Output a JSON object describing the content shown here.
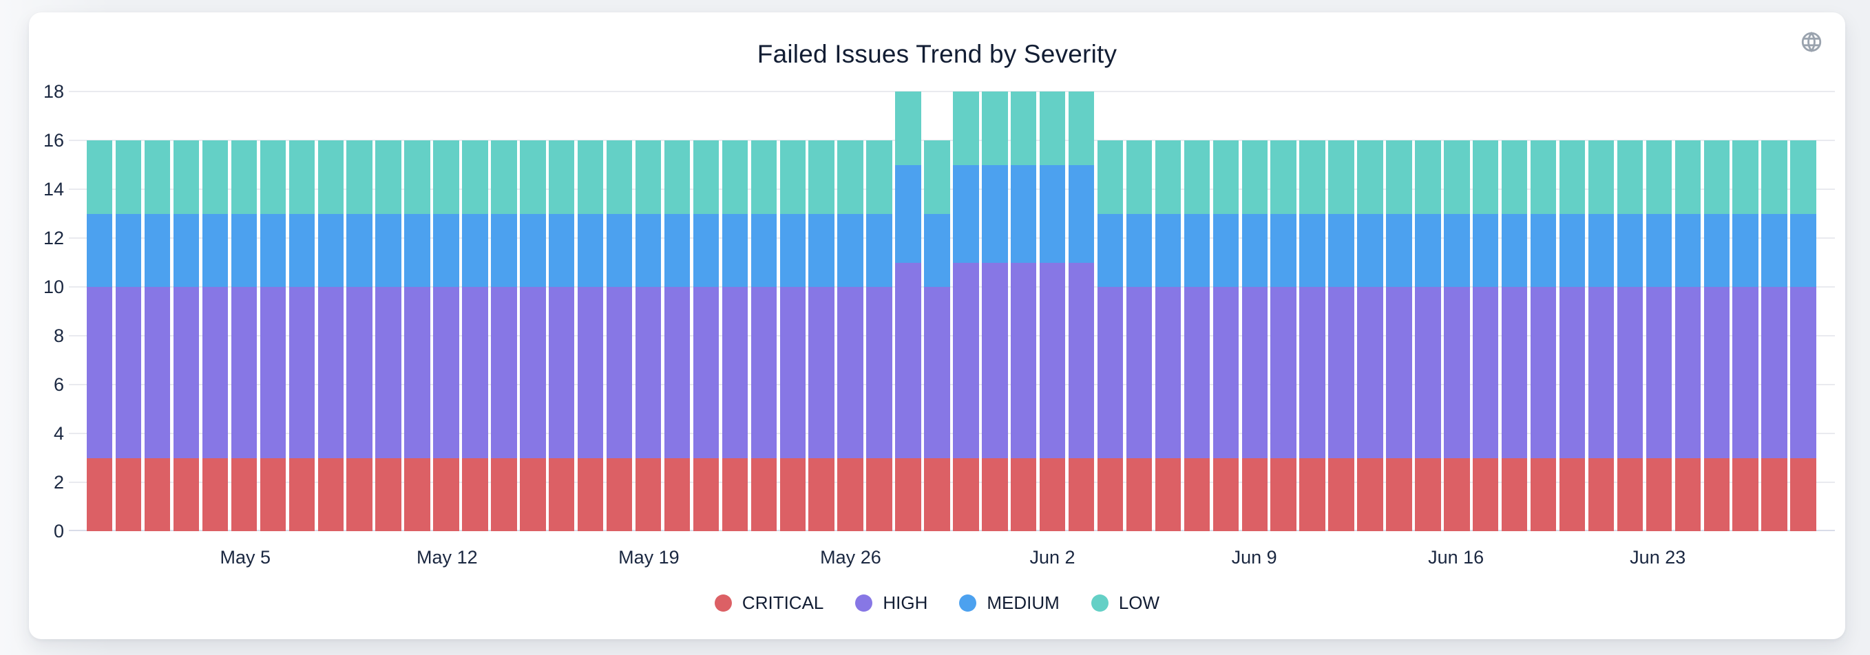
{
  "header": {
    "title": "Failed Issues Trend by Severity",
    "globe_icon": "globe-icon"
  },
  "colors": {
    "critical": "#dc6065",
    "high": "#8777e5",
    "medium": "#4ca1ef",
    "low": "#64d0c6",
    "axis_text": "#1a2740",
    "title_text": "#121d33",
    "gridline": "#e9eaef",
    "baseline": "#d8dce8",
    "card_bg": "#ffffff",
    "page_bg": "#eff1f4",
    "globe_gray": "#9aa3ae"
  },
  "chart_data": {
    "type": "bar",
    "stacked": true,
    "title": "Failed Issues Trend by Severity",
    "xlabel": "",
    "ylabel": "",
    "ylim": [
      0,
      18
    ],
    "yticks": [
      0,
      2,
      4,
      6,
      8,
      10,
      12,
      14,
      16,
      18
    ],
    "grid": true,
    "legend_position": "bottom",
    "xticks": [
      "May 5",
      "May 12",
      "May 19",
      "May 26",
      "Jun 2",
      "Jun 9",
      "Jun 16",
      "Jun 23"
    ],
    "categories": [
      "Apr 30",
      "May 1",
      "May 2",
      "May 3",
      "May 4",
      "May 5",
      "May 6",
      "May 7",
      "May 8",
      "May 9",
      "May 10",
      "May 11",
      "May 12",
      "May 13",
      "May 14",
      "May 15",
      "May 16",
      "May 17",
      "May 18",
      "May 19",
      "May 20",
      "May 21",
      "May 22",
      "May 23",
      "May 24",
      "May 25",
      "May 26",
      "May 27",
      "May 28",
      "May 29",
      "May 30",
      "May 31",
      "Jun 1",
      "Jun 2",
      "Jun 3",
      "Jun 4",
      "Jun 5",
      "Jun 6",
      "Jun 7",
      "Jun 8",
      "Jun 9",
      "Jun 10",
      "Jun 11",
      "Jun 12",
      "Jun 13",
      "Jun 14",
      "Jun 15",
      "Jun 16",
      "Jun 17",
      "Jun 18",
      "Jun 19",
      "Jun 20",
      "Jun 21",
      "Jun 22",
      "Jun 23",
      "Jun 24",
      "Jun 25",
      "Jun 26",
      "Jun 27",
      "Jun 28"
    ],
    "series": [
      {
        "name": "CRITICAL",
        "color": "#dc6065",
        "values": [
          3,
          3,
          3,
          3,
          3,
          3,
          3,
          3,
          3,
          3,
          3,
          3,
          3,
          3,
          3,
          3,
          3,
          3,
          3,
          3,
          3,
          3,
          3,
          3,
          3,
          3,
          3,
          3,
          3,
          3,
          3,
          3,
          3,
          3,
          3,
          3,
          3,
          3,
          3,
          3,
          3,
          3,
          3,
          3,
          3,
          3,
          3,
          3,
          3,
          3,
          3,
          3,
          3,
          3,
          3,
          3,
          3,
          3,
          3,
          3
        ]
      },
      {
        "name": "HIGH",
        "color": "#8777e5",
        "values": [
          7,
          7,
          7,
          7,
          7,
          7,
          7,
          7,
          7,
          7,
          7,
          7,
          7,
          7,
          7,
          7,
          7,
          7,
          7,
          7,
          7,
          7,
          7,
          7,
          7,
          7,
          7,
          7,
          8,
          7,
          8,
          8,
          8,
          8,
          8,
          7,
          7,
          7,
          7,
          7,
          7,
          7,
          7,
          7,
          7,
          7,
          7,
          7,
          7,
          7,
          7,
          7,
          7,
          7,
          7,
          7,
          7,
          7,
          7,
          7
        ]
      },
      {
        "name": "MEDIUM",
        "color": "#4ca1ef",
        "values": [
          3,
          3,
          3,
          3,
          3,
          3,
          3,
          3,
          3,
          3,
          3,
          3,
          3,
          3,
          3,
          3,
          3,
          3,
          3,
          3,
          3,
          3,
          3,
          3,
          3,
          3,
          3,
          3,
          4,
          3,
          4,
          4,
          4,
          4,
          4,
          3,
          3,
          3,
          3,
          3,
          3,
          3,
          3,
          3,
          3,
          3,
          3,
          3,
          3,
          3,
          3,
          3,
          3,
          3,
          3,
          3,
          3,
          3,
          3,
          3
        ]
      },
      {
        "name": "LOW",
        "color": "#64d0c6",
        "values": [
          3,
          3,
          3,
          3,
          3,
          3,
          3,
          3,
          3,
          3,
          3,
          3,
          3,
          3,
          3,
          3,
          3,
          3,
          3,
          3,
          3,
          3,
          3,
          3,
          3,
          3,
          3,
          3,
          3,
          3,
          3,
          3,
          3,
          3,
          3,
          3,
          3,
          3,
          3,
          3,
          3,
          3,
          3,
          3,
          3,
          3,
          3,
          3,
          3,
          3,
          3,
          3,
          3,
          3,
          3,
          3,
          3,
          3,
          3,
          3
        ]
      }
    ]
  }
}
